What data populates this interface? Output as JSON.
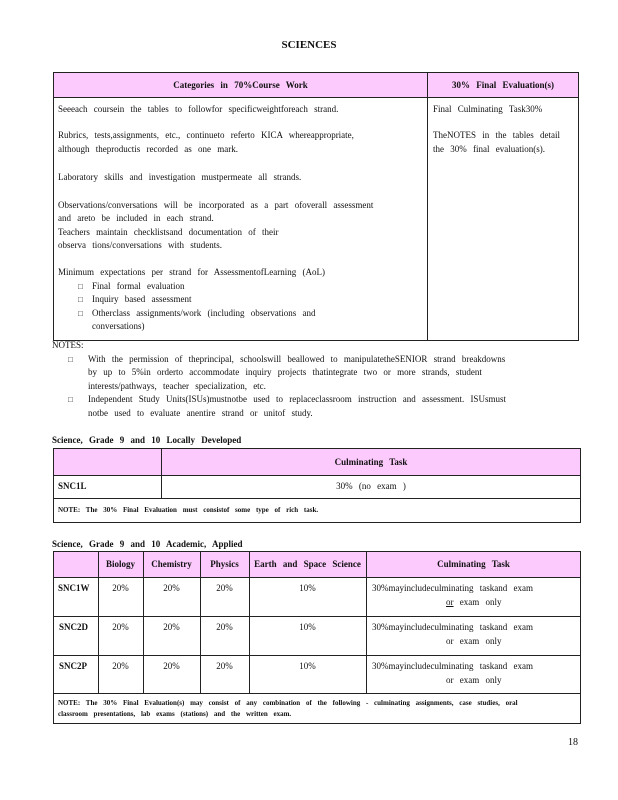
{
  "title": "SCIENCES",
  "table1": {
    "header": [
      "Categories   in 70%Course   Work",
      "30%  Final  Evaluation(s)"
    ],
    "left": [
      "Seeeach  coursein  the  tables  to followfor  specificweightforeach      strand.",
      "Rubrics,  tests,assignments,      etc.,  continueto   referto  KICA whereappropriate,",
      "although   theproductis    recorded   as one   mark.",
      "Laboratory   skills  and  investigation    mustpermeate     all strands.",
      "Observations/conversations        will be  incorporated    as  a part  ofoverall   assessment",
      "and  areto  be included   in each  strand.",
      "Teachers   maintain   checklistsand     documentation     of their",
      "observa  tions/conversations       with  students.",
      "Minimum    expectations    per strand   for AssessmentofLearning       (AoL)"
    ],
    "bullets": [
      "Final  formal  evaluation",
      "Inquiry  based  assessment",
      "Otherclass   assignments/work      (including    observations     and",
      "conversations)"
    ],
    "right": [
      "Final  Culminating    Task30%",
      "TheNOTES  in the  tables  detail",
      "the  30%  final  evaluation(s)."
    ]
  },
  "notes": {
    "label": "NOTES:",
    "lines": [
      "With  the  permission    of theprincipal,    schoolswill    beallowed   to manipulatetheSENIOR      strand   breakdowns",
      "by up to 5%in  orderto   accommodate     inquiry  projects  thatintegrate    two  or  more  strands,   student",
      "interests/pathways,        teacher  specialization,     etc.",
      "Independent     Study  Units(ISUs)mustnotbe        used  to replaceclassroom       instruction    and assessment.   ISUsmust",
      "notbe   used  to evaluate   anentire   strand   or unitof   study."
    ]
  },
  "section1": {
    "title": "Science,    Grade   9 and   10  Locally   Developed",
    "header": "Culminating     Task",
    "code": "SNC1L",
    "value": "30%  (no  exam )",
    "note": "NOTE:  The  30%  Final  Evaluation    must   consistof    some   type   of rich  task."
  },
  "section2": {
    "title": "Science,    Grade   9 and   10  Academic,    Applied",
    "headers": [
      "",
      "Biology",
      "Chemistry",
      "Physics",
      "Earth   and   Space   Science",
      "Culminating     Task"
    ],
    "rows": [
      {
        "code": "SNC1W",
        "biology": "20%",
        "chemistry": "20%",
        "physics": "20%",
        "earth": "10%",
        "task1": "30%mayincludeculminating          taskand     exam",
        "task_or": "or",
        "task2": " exam   only"
      },
      {
        "code": "SNC2D",
        "biology": "20%",
        "chemistry": "20%",
        "physics": "20%",
        "earth": "10%",
        "task1": "30%mayincludeculminating          taskand     exam",
        "task_or": "or",
        "task2": " exam   only"
      },
      {
        "code": "SNC2P",
        "biology": "20%",
        "chemistry": "20%",
        "physics": "20%",
        "earth": "10%",
        "task1": "30%mayincludeculminating          taskand     exam",
        "task_or": "or",
        "task2": " exam   only"
      }
    ],
    "note1": "NOTE:  The  30%  Final  Evaluation(s)     may   consist   of any  combination     of  the  following    - culminating     assignments,      case  studies,    oral",
    "note2": "classroom     presentations,       lab  exams    (stations)     and  the   written    exam."
  },
  "page_number": "18",
  "colors": {
    "header_bg": "#fccafc",
    "border": "#222222"
  }
}
